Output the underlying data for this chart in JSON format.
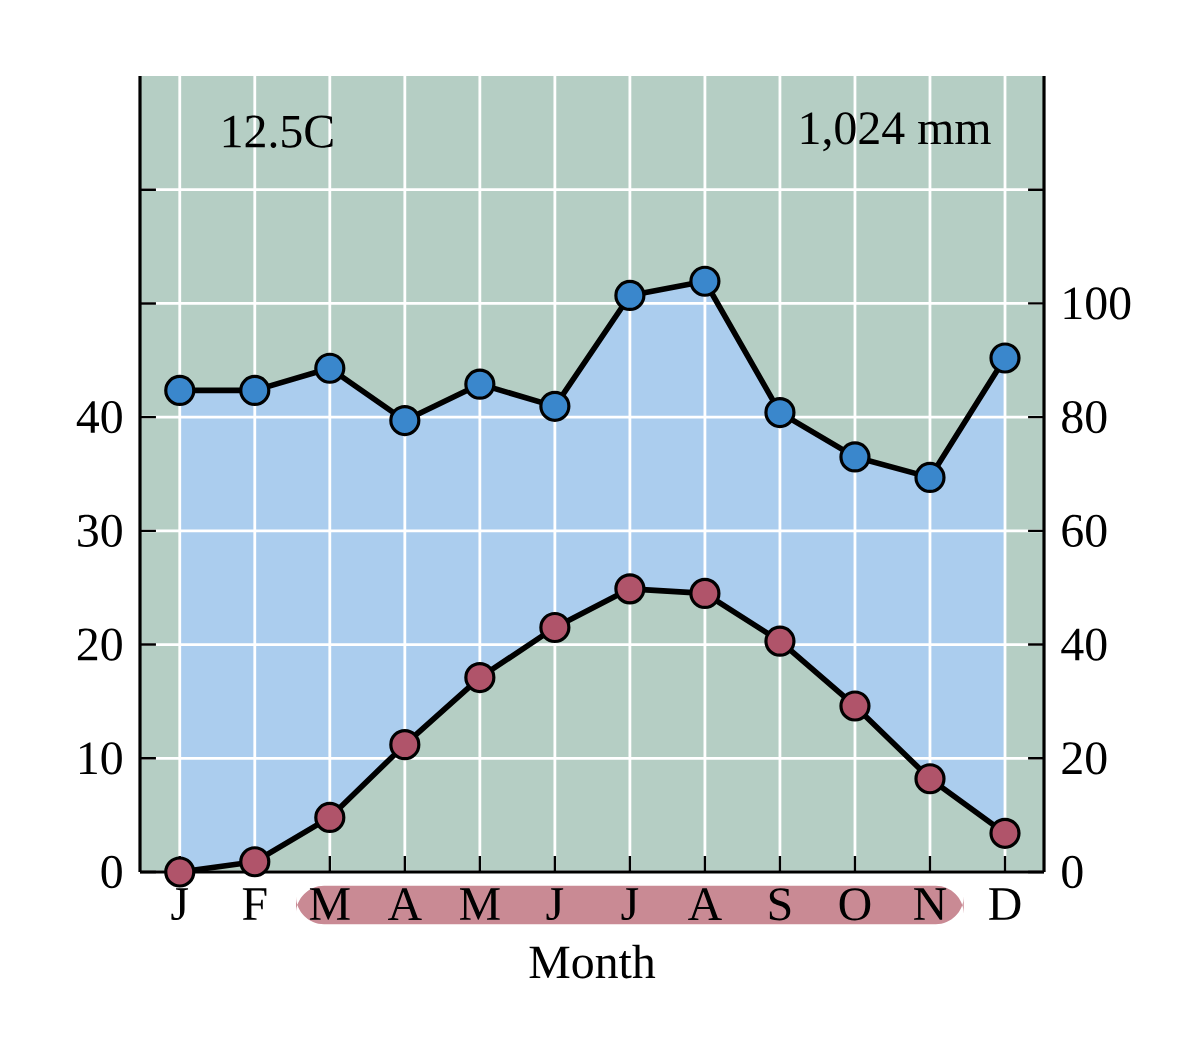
{
  "chart_data": {
    "type": "area",
    "categories": [
      "J",
      "F",
      "M",
      "A",
      "M",
      "J",
      "J",
      "A",
      "S",
      "O",
      "N",
      "D"
    ],
    "series": [
      {
        "color": "#abcdee",
        "axis": "y2",
        "values": [
          84.7,
          84.7,
          88.6,
          79.4,
          85.8,
          81.9,
          101.4,
          103.9,
          80.8,
          73.0,
          69.4,
          90.4
        ]
      },
      {
        "color": "#b5cec4",
        "values": [
          0,
          0.9,
          4.8,
          11.2,
          17.1,
          21.5,
          24.9,
          24.5,
          20.3,
          14.6,
          8.2,
          3.4
        ]
      }
    ],
    "xlabel": "Month",
    "ylim": [
      0,
      70
    ],
    "yticks": [
      0,
      10,
      20,
      30,
      40,
      {
        "value": 50,
        "label": null
      },
      {
        "value": 60,
        "label": null
      }
    ],
    "y2lim": [
      0,
      140
    ],
    "y2ticks": [
      0,
      20,
      40,
      60,
      80,
      100,
      {
        "value": 120,
        "label": null
      }
    ],
    "annotations": [
      "12.5C",
      "1,024 mm"
    ],
    "grid": true,
    "marker": "circle",
    "line_style": "solid"
  }
}
